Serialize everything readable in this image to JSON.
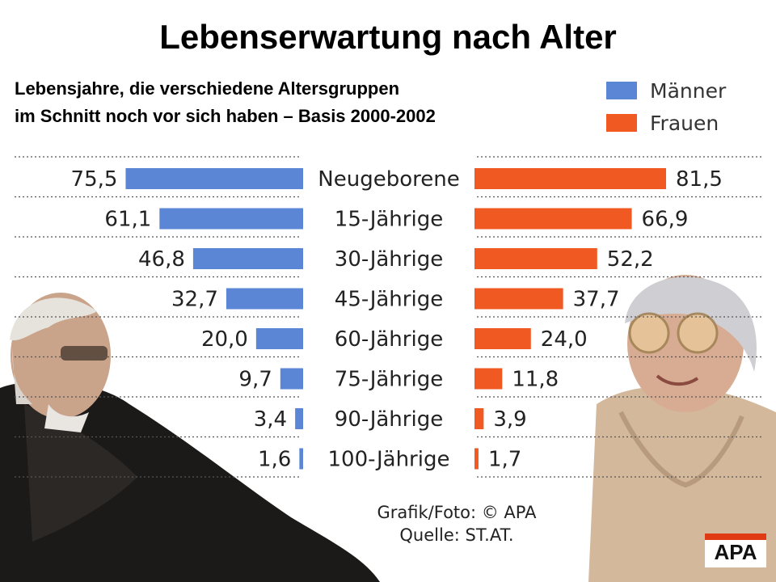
{
  "title": "Lebenserwartung nach Alter",
  "subtitle_line1": "Lebensjahre, die verschiedene Altersgruppen",
  "subtitle_line2": "im Schnitt noch vor sich haben – Basis 2000-2002",
  "legend": {
    "men": "Männer",
    "women": "Frauen"
  },
  "colors": {
    "men": "#5b86d6",
    "women": "#f05a22"
  },
  "source_line1": "Grafik/Foto: © APA",
  "source_line2": "Quelle: ST.AT.",
  "logo_text": "APA",
  "chart_data": {
    "type": "bar",
    "orientation": "horizontal",
    "layout": "butterfly",
    "title": "Lebenserwartung nach Alter",
    "categories": [
      "Neugeborene",
      "15-Jährige",
      "30-Jährige",
      "45-Jährige",
      "60-Jährige",
      "75-Jährige",
      "90-Jährige",
      "100-Jährige"
    ],
    "series": [
      {
        "name": "Männer",
        "values": [
          75.5,
          61.1,
          46.8,
          32.7,
          20.0,
          9.7,
          3.4,
          1.6
        ],
        "labels": [
          "75,5",
          "61,1",
          "46,8",
          "32,7",
          "20,0",
          "9,7",
          "3,4",
          "1,6"
        ]
      },
      {
        "name": "Frauen",
        "values": [
          81.5,
          66.9,
          52.2,
          37.7,
          24.0,
          11.8,
          3.9,
          1.7
        ],
        "labels": [
          "81,5",
          "66,9",
          "52,2",
          "37,7",
          "24,0",
          "11,8",
          "3,9",
          "1,7"
        ]
      }
    ],
    "xlim": [
      0,
      81.5
    ],
    "grid": true,
    "legend_position": "top-right"
  }
}
